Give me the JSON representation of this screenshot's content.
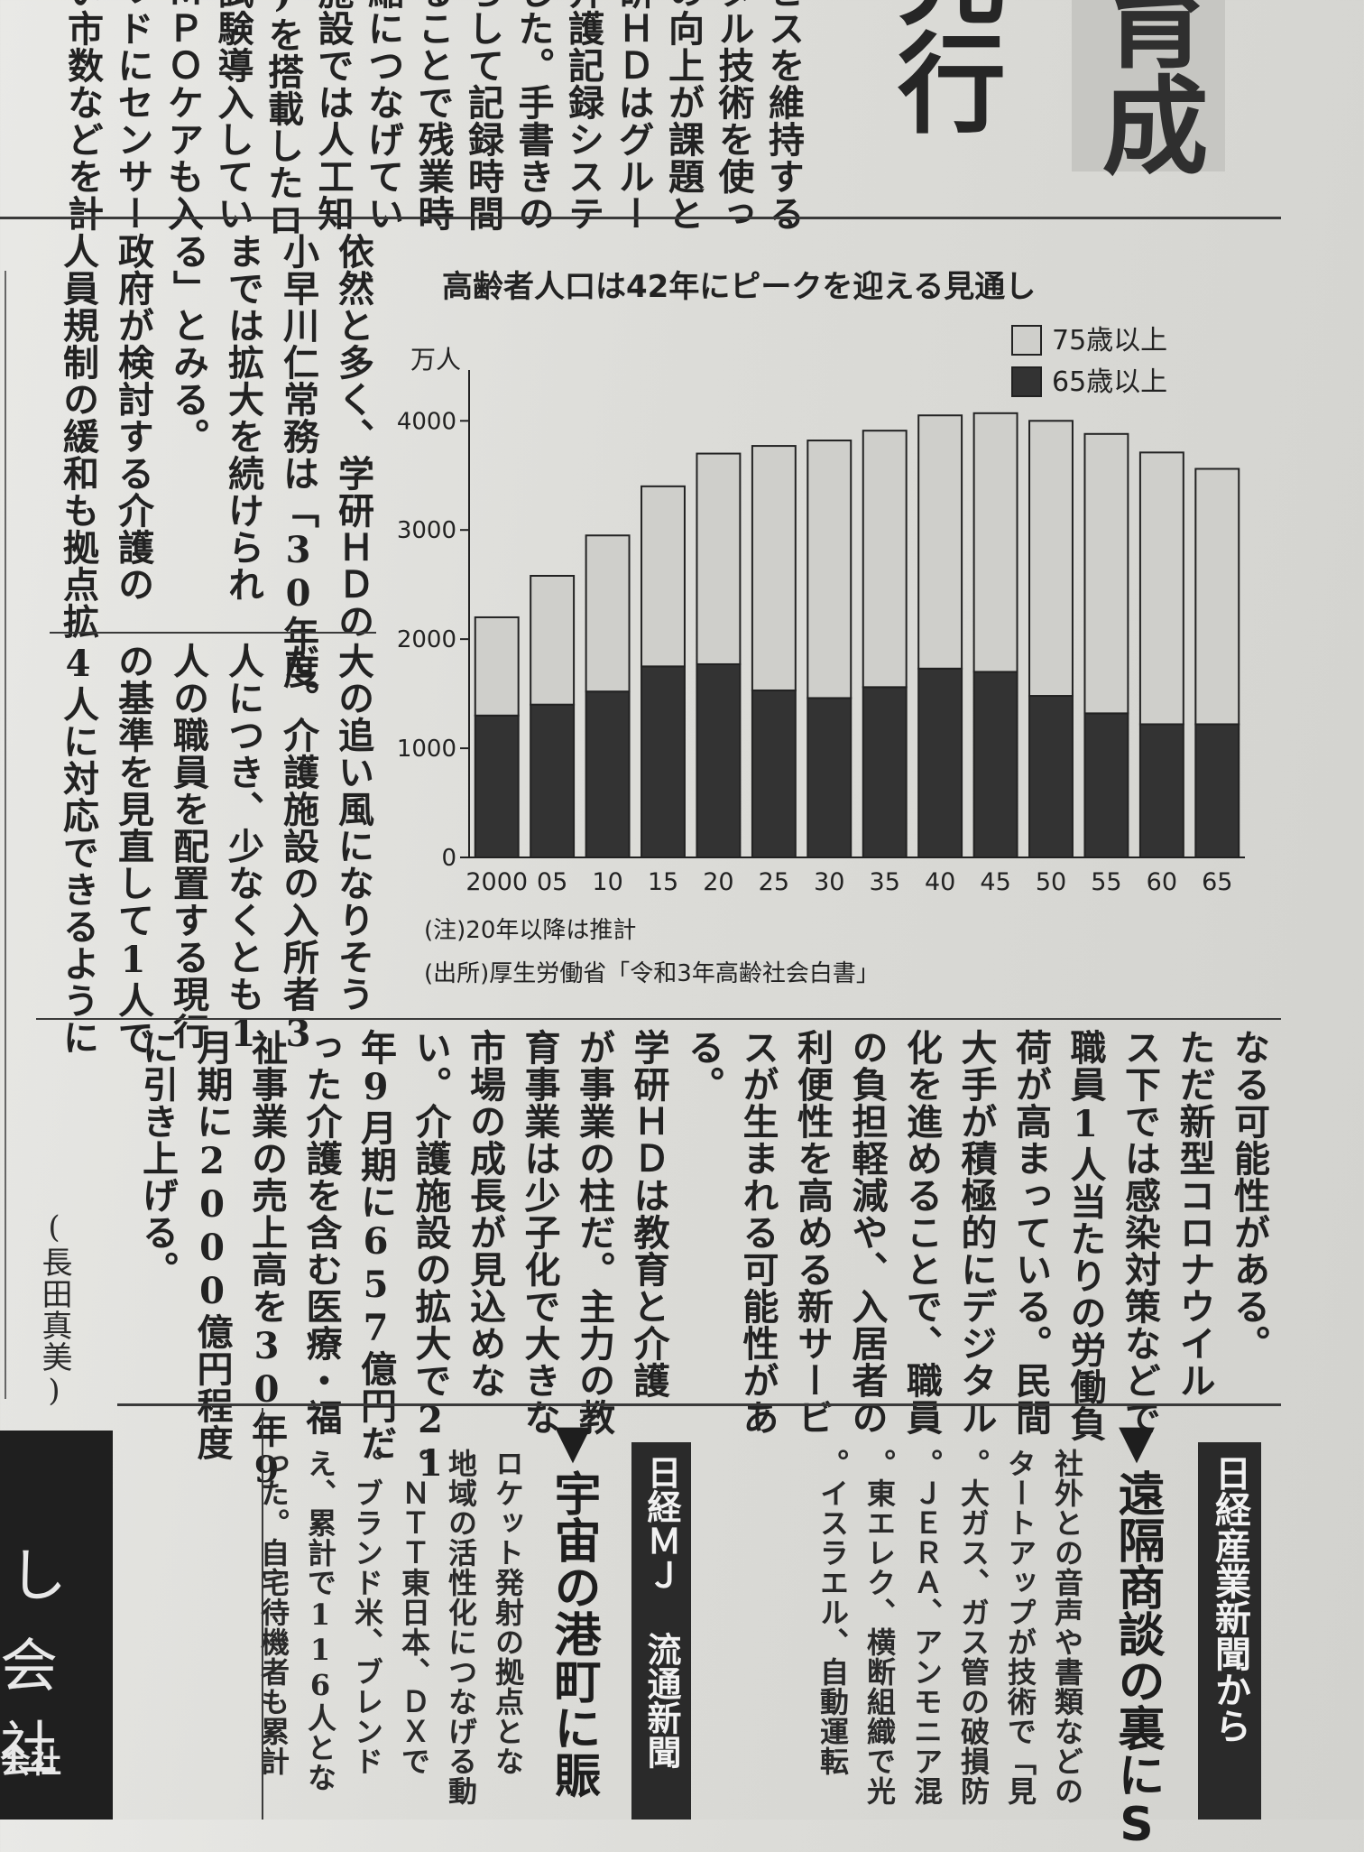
{
  "header": {
    "headline_top_fragment": "育成",
    "headline_second_fragment": "先行"
  },
  "top_columns": [
    "ビスを維持する",
    "タル技術を使っ",
    "の向上が課題と",
    "研ＨＤはグルー",
    "介護記録システ",
    "した。手書きの",
    "らして記録時間",
    "ることで残業時",
    "縮につなげてい",
    "施設では人工知",
    ")を搭載したロ",
    "試験導入してい",
    "ＭＰＯケアも入",
    "ッドにセンサー",
    "い市数などを計"
  ],
  "middle_left_columns": [
    "依然と多く、学研ＨＤの",
    "小早川仁常務は「30年度",
    "までは拡大を続けられ",
    "る」とみる。",
    "政府が検討する介護の",
    "人員規制の緩和も拠点拡"
  ],
  "middle_lower_columns": [
    "大の追い風になりそう",
    "だ。介護施設の入所者3",
    "人につき、少なくとも1",
    "人の職員を配置する現行",
    "の基準を見直して1人で",
    "4人に対応できるように"
  ],
  "chart_data": {
    "type": "bar",
    "title": "高齢者人口は42年にピークを迎える見通し",
    "unit_label": "万人",
    "categories": [
      "2000",
      "05",
      "10",
      "15",
      "20",
      "25",
      "30",
      "35",
      "40",
      "45",
      "50",
      "55",
      "60",
      "65"
    ],
    "series": [
      {
        "name": "65歳以上",
        "values": [
          1300,
          1400,
          1520,
          1750,
          1770,
          1530,
          1460,
          1560,
          1730,
          1700,
          1480,
          1320,
          1220,
          1220
        ],
        "color": "#333333"
      },
      {
        "name": "75歳以上",
        "values": [
          900,
          1180,
          1430,
          1650,
          1930,
          2240,
          2360,
          2350,
          2320,
          2370,
          2520,
          2560,
          2490,
          2340
        ],
        "color": "#cfcfcb"
      }
    ],
    "yticks": [
      "0",
      "1000",
      "2000",
      "3000",
      "4000"
    ],
    "ylim": [
      0,
      4300
    ],
    "legend_position": "top-right",
    "grid": false,
    "note": "(注)20年以降は推計",
    "source": "(出所)厚生労働省「令和3年高齢社会白書」"
  },
  "bottom_columns": [
    "なる可能性がある。",
    "ただ新型コロナウイル",
    "ス下では感染対策などで",
    "職員1人当たりの労働負",
    "荷が高まっている。民間",
    "大手が積極的にデジタル",
    "化を進めることで、職員",
    "の負担軽減や、入居者の",
    "利便性を高める新サービ",
    "スが生まれる可能性があ",
    "る。",
    "学研ＨＤは教育と介護",
    "が事業の柱だ。主力の教",
    "育事業は少子化で大きな",
    "市場の成長が見込めな",
    "い。介護施設の拡大で21",
    "年9月期に657億円だ",
    "った介護を含む医療・福",
    "祉事業の売上高を30年9",
    "月期に2000億円程度",
    "に引き上げる。"
  ],
  "byline": "(長田真美)",
  "nikkei_sangyo": {
    "banner": "日経産業新聞から",
    "headline": "▼遠隔商談の裏にS",
    "columns": [
      "社外との音声や書類などの",
      "タートアップが技術で「見",
      "。大ガス、ガス管の破損防",
      "。ＪＥＲＡ、アンモニア混",
      "。東エレク、横断組織で光",
      "。イスラエル、自動運転"
    ]
  },
  "nikkei_mj": {
    "banner": "日経ＭＪ 流通新聞",
    "headline": "▼宇宙の港町に賑",
    "columns": [
      "ロケット発射の拠点とな",
      "地域の活性化につなげる動",
      "。ＮＴＴ東日本、ＤＸで",
      "。ブランド米、ブレンド",
      "え、累計で116人とな",
      "った。自宅待機者も累計"
    ]
  },
  "left_ad": {
    "line1": "し",
    "line2": "会社",
    "line3": "会社"
  }
}
